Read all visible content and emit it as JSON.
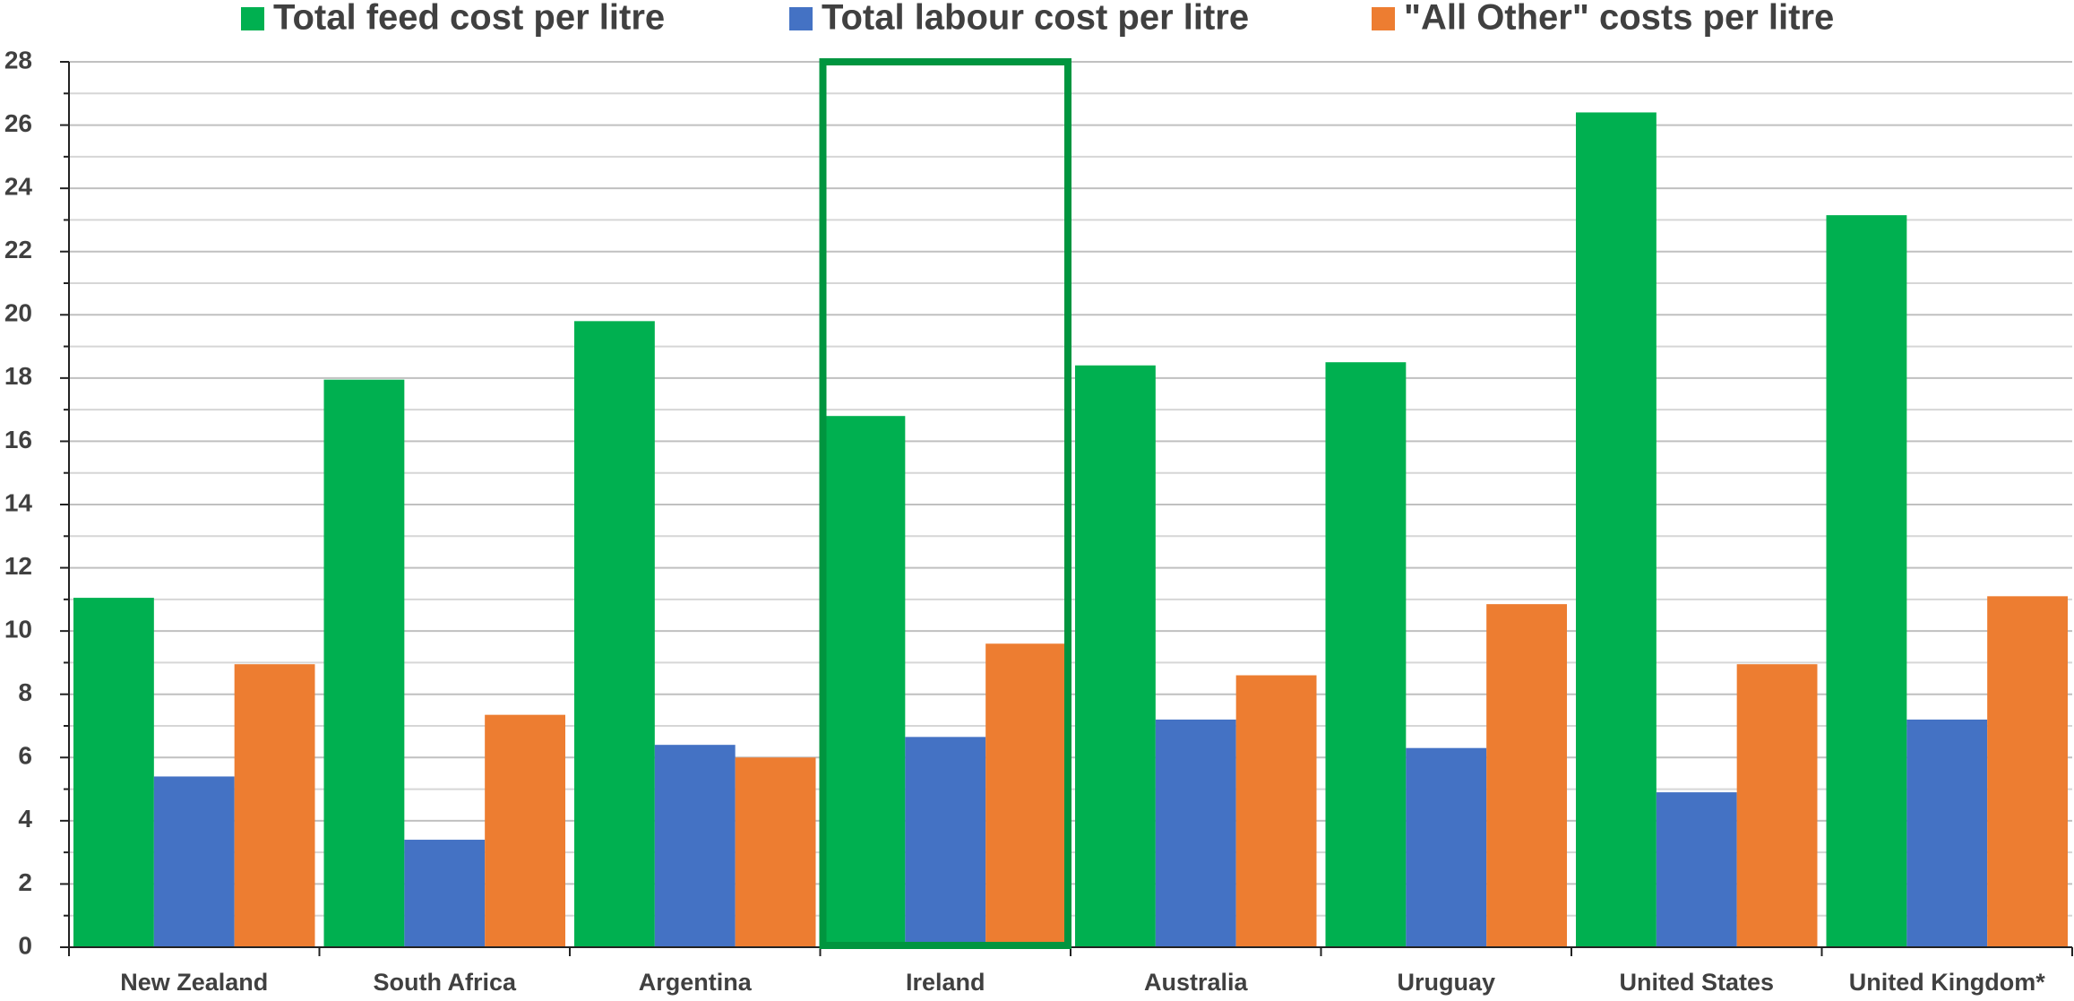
{
  "chart_data": {
    "type": "bar",
    "categories": [
      "New Zealand",
      "South Africa",
      "Argentina",
      "Ireland",
      "Australia",
      "Uruguay",
      "United States",
      "United Kingdom*"
    ],
    "series": [
      {
        "name": "Total feed cost per litre",
        "color": "#00b050",
        "values": [
          11.05,
          17.95,
          19.8,
          16.8,
          18.4,
          18.5,
          26.4,
          23.15
        ]
      },
      {
        "name": "Total labour cost per litre",
        "color": "#4472c4",
        "values": [
          5.4,
          3.4,
          6.4,
          6.65,
          7.2,
          6.3,
          4.9,
          7.2
        ]
      },
      {
        "name": "\"All Other\" costs  per litre",
        "color": "#ed7d31",
        "values": [
          8.95,
          7.35,
          6.0,
          9.6,
          8.6,
          10.85,
          8.95,
          11.1
        ]
      }
    ],
    "ylim": [
      0,
      28
    ],
    "yticks": [
      0,
      2,
      4,
      6,
      8,
      10,
      12,
      14,
      16,
      18,
      20,
      22,
      24,
      26,
      28
    ],
    "grid": true,
    "minor_grid": true,
    "legend": "top",
    "highlight_index": 3,
    "highlight_color": "#00953f"
  }
}
